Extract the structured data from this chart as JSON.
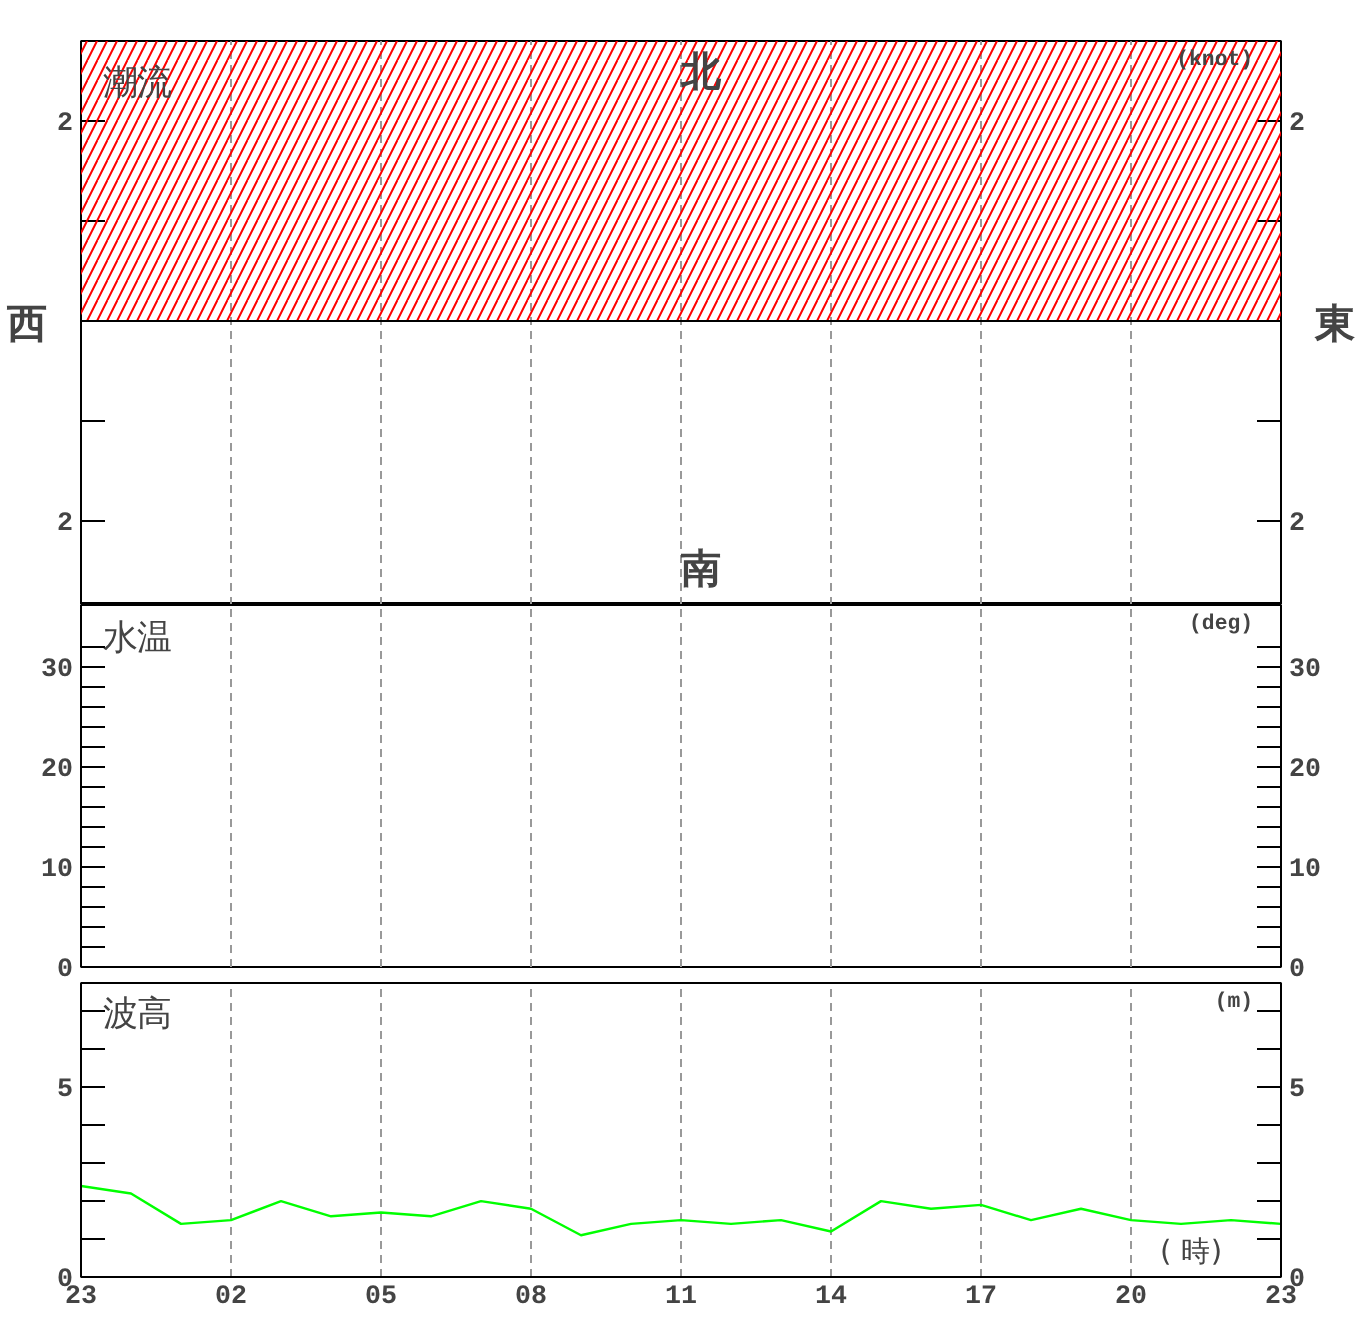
{
  "chart_data": [
    {
      "type": "line",
      "title": "潮流",
      "y2label": "(knot)",
      "annotations": [
        "北",
        "南",
        "西",
        "東"
      ],
      "categories": [
        "23",
        null,
        null,
        "02",
        null,
        null,
        "05",
        null,
        null,
        "08",
        null,
        null,
        "11",
        null,
        null,
        "14",
        null,
        null,
        "17",
        null,
        null,
        "20",
        null,
        null,
        "23"
      ],
      "ylim": [
        -2.84,
        2.8
      ],
      "yticks": [
        {
          "value": -2,
          "label": "2"
        },
        {
          "value": -1,
          "label": null
        },
        {
          "value": 1,
          "label": null
        },
        {
          "value": 2,
          "label": "2"
        }
      ],
      "y2lim": [
        -2.84,
        2.8
      ],
      "y2ticks": [
        {
          "value": -2,
          "label": "2"
        },
        {
          "value": -1,
          "label": null
        },
        {
          "value": 1,
          "label": null
        },
        {
          "value": 2,
          "label": "2"
        }
      ],
      "bands": [
        {
          "axis": "y",
          "from": 0,
          "to": 2.8,
          "color": "#ff0000"
        }
      ],
      "grid": "x",
      "tick_labels": "y"
    },
    {
      "type": "line",
      "title": "水温",
      "y2label": "(deg)",
      "categories": [
        "23",
        null,
        null,
        "02",
        null,
        null,
        "05",
        null,
        null,
        "08",
        null,
        null,
        "11",
        null,
        null,
        "14",
        null,
        null,
        "17",
        null,
        null,
        "20",
        null,
        null,
        "23"
      ],
      "ylim": [
        0,
        36.2
      ],
      "yticks": [
        0,
        {
          "value": 2,
          "label": null
        },
        {
          "value": 4,
          "label": null
        },
        {
          "value": 6,
          "label": null
        },
        {
          "value": 8,
          "label": null
        },
        10,
        {
          "value": 12,
          "label": null
        },
        {
          "value": 14,
          "label": null
        },
        {
          "value": 16,
          "label": null
        },
        {
          "value": 18,
          "label": null
        },
        20,
        {
          "value": 22,
          "label": null
        },
        {
          "value": 24,
          "label": null
        },
        {
          "value": 26,
          "label": null
        },
        {
          "value": 28,
          "label": null
        },
        30,
        {
          "value": 32,
          "label": null
        }
      ],
      "y2lim": [
        0,
        36.2
      ],
      "y2ticks": [
        0,
        {
          "value": 2,
          "label": null
        },
        {
          "value": 4,
          "label": null
        },
        {
          "value": 6,
          "label": null
        },
        {
          "value": 8,
          "label": null
        },
        10,
        {
          "value": 12,
          "label": null
        },
        {
          "value": 14,
          "label": null
        },
        {
          "value": 16,
          "label": null
        },
        {
          "value": 18,
          "label": null
        },
        20,
        {
          "value": 22,
          "label": null
        },
        {
          "value": 24,
          "label": null
        },
        {
          "value": 26,
          "label": null
        },
        {
          "value": 28,
          "label": null
        },
        30,
        {
          "value": 32,
          "label": null
        }
      ],
      "grid": "x",
      "tick_labels": "y"
    },
    {
      "type": "line",
      "title": "波高",
      "y2label": "(m)",
      "xlabel": "( 時)",
      "categories": [
        "23",
        null,
        null,
        "02",
        null,
        null,
        "05",
        null,
        null,
        "08",
        null,
        null,
        "11",
        null,
        null,
        "14",
        null,
        null,
        "17",
        null,
        null,
        "20",
        null,
        null,
        "23"
      ],
      "ylim": [
        0,
        7.75
      ],
      "yticks": [
        0,
        {
          "value": 1,
          "label": null
        },
        {
          "value": 2,
          "label": null
        },
        {
          "value": 3,
          "label": null
        },
        {
          "value": 4,
          "label": null
        },
        5,
        {
          "value": 6,
          "label": null
        },
        {
          "value": 7,
          "label": null
        }
      ],
      "y2lim": [
        0,
        7.75
      ],
      "y2ticks": [
        0,
        {
          "value": 1,
          "label": null
        },
        {
          "value": 2,
          "label": null
        },
        {
          "value": 3,
          "label": null
        },
        {
          "value": 4,
          "label": null
        },
        5,
        {
          "value": 6,
          "label": null
        },
        {
          "value": 7,
          "label": null
        }
      ],
      "grid": "x",
      "series": [
        {
          "color": "#00ff00",
          "values": [
            2.4,
            2.2,
            1.4,
            1.5,
            2.0,
            1.6,
            1.7,
            1.6,
            2.0,
            1.8,
            1.1,
            1.4,
            1.5,
            1.4,
            1.5,
            1.2,
            2.0,
            1.8,
            1.9,
            1.5,
            1.8,
            1.5,
            1.4,
            1.5,
            1.4
          ]
        }
      ]
    }
  ]
}
